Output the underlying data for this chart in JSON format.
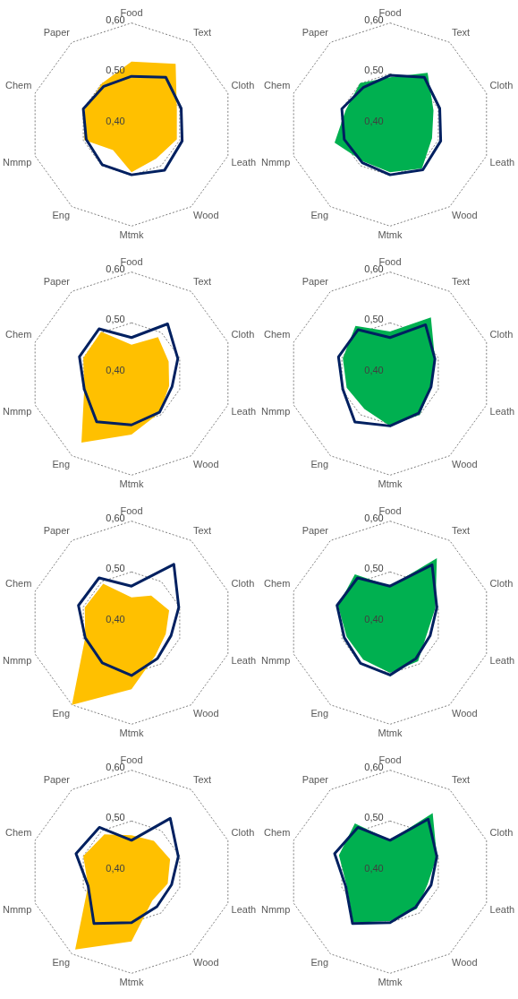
{
  "chart_data": [
    {
      "type": "radar",
      "categories": [
        "Food",
        "Text",
        "Cloth",
        "Leath",
        "Wood",
        "Mtmk",
        "Eng",
        "Nmmp",
        "Chem",
        "Paper"
      ],
      "ylim": [
        0.4,
        0.6
      ],
      "yticks": [
        {
          "value": 0.4,
          "label": "0,40"
        },
        {
          "value": 0.5,
          "label": "0,50"
        },
        {
          "value": 0.6,
          "label": "0,60"
        }
      ],
      "grid": true,
      "legend": false,
      "marker": "none",
      "series": [
        {
          "type": "area",
          "color": "#ffc000",
          "values": [
            0.524,
            0.548,
            0.494,
            0.494,
            0.483,
            0.494,
            0.462,
            0.498,
            0.497,
            0.5
          ]
        },
        {
          "type": "radar",
          "color": "#002060",
          "values": [
            0.495,
            0.515,
            0.503,
            0.505,
            0.511,
            0.499,
            0.498,
            0.494,
            0.5,
            0.493
          ]
        }
      ]
    },
    {
      "type": "radar",
      "categories": [
        "Food",
        "Text",
        "Cloth",
        "Leath",
        "Wood",
        "Mtmk",
        "Eng",
        "Nmmp",
        "Chem",
        "Paper"
      ],
      "ylim": [
        0.4,
        0.6
      ],
      "yticks": [
        {
          "value": 0.4,
          "label": "0,40"
        },
        {
          "value": 0.5,
          "label": "0,50"
        },
        {
          "value": 0.6,
          "label": "0,60"
        }
      ],
      "grid": true,
      "legend": false,
      "marker": "none",
      "series": [
        {
          "type": "area",
          "color": "#00b050",
          "values": [
            0.493,
            0.526,
            0.49,
            0.487,
            0.507,
            0.494,
            0.49,
            0.515,
            0.492,
            0.501
          ]
        },
        {
          "type": "radar",
          "color": "#002060",
          "values": [
            0.497,
            0.515,
            0.503,
            0.505,
            0.51,
            0.499,
            0.493,
            0.495,
            0.5,
            0.49
          ]
        }
      ]
    },
    {
      "type": "radar",
      "categories": [
        "Food",
        "Text",
        "Cloth",
        "Leath",
        "Wood",
        "Mtmk",
        "Eng",
        "Nmmp",
        "Chem",
        "Paper"
      ],
      "ylim": [
        0.4,
        0.6
      ],
      "yticks": [
        {
          "value": 0.4,
          "label": "0,40"
        },
        {
          "value": 0.5,
          "label": "0,50"
        },
        {
          "value": 0.6,
          "label": "0,60"
        }
      ],
      "grid": true,
      "legend": false,
      "marker": "none",
      "series": [
        {
          "type": "area",
          "color": "#ffc000",
          "values": [
            0.457,
            0.489,
            0.477,
            0.478,
            0.495,
            0.52,
            0.568,
            0.498,
            0.5,
            0.502
          ]
        },
        {
          "type": "radar",
          "color": "#002060",
          "values": [
            0.471,
            0.521,
            0.496,
            0.484,
            0.494,
            0.501,
            0.517,
            0.498,
            0.508,
            0.509
          ]
        }
      ]
    },
    {
      "type": "radar",
      "categories": [
        "Food",
        "Text",
        "Cloth",
        "Leath",
        "Wood",
        "Mtmk",
        "Eng",
        "Nmmp",
        "Chem",
        "Paper"
      ],
      "ylim": [
        0.4,
        0.6
      ],
      "yticks": [
        {
          "value": 0.4,
          "label": "0,40"
        },
        {
          "value": 0.5,
          "label": "0,50"
        },
        {
          "value": 0.6,
          "label": "0,60"
        }
      ],
      "grid": true,
      "legend": false,
      "marker": "none",
      "series": [
        {
          "type": "area",
          "color": "#00b050",
          "values": [
            0.483,
            0.537,
            0.493,
            0.485,
            0.5,
            0.503,
            0.486,
            0.49,
            0.498,
            0.516
          ]
        },
        {
          "type": "radar",
          "color": "#002060",
          "values": [
            0.471,
            0.519,
            0.493,
            0.485,
            0.496,
            0.503,
            0.518,
            0.498,
            0.507,
            0.507
          ]
        }
      ]
    },
    {
      "type": "radar",
      "categories": [
        "Food",
        "Text",
        "Cloth",
        "Leath",
        "Wood",
        "Mtmk",
        "Eng",
        "Nmmp",
        "Chem",
        "Paper"
      ],
      "ylim": [
        0.4,
        0.6
      ],
      "yticks": [
        {
          "value": 0.4,
          "label": "0,40"
        },
        {
          "value": 0.5,
          "label": "0,50"
        },
        {
          "value": 0.6,
          "label": "0,60"
        }
      ],
      "grid": true,
      "legend": false,
      "marker": "none",
      "series": [
        {
          "type": "area",
          "color": "#ffc000",
          "values": [
            0.45,
            0.466,
            0.478,
            0.471,
            0.48,
            0.531,
            0.6,
            0.496,
            0.497,
            0.495
          ]
        },
        {
          "type": "radar",
          "color": "#002060",
          "values": [
            0.472,
            0.542,
            0.498,
            0.482,
            0.487,
            0.504,
            0.498,
            0.496,
            0.51,
            0.509
          ]
        }
      ]
    },
    {
      "type": "radar",
      "categories": [
        "Food",
        "Text",
        "Cloth",
        "Leath",
        "Wood",
        "Mtmk",
        "Eng",
        "Nmmp",
        "Chem",
        "Paper"
      ],
      "ylim": [
        0.4,
        0.6
      ],
      "yticks": [
        {
          "value": 0.4,
          "label": "0,40"
        },
        {
          "value": 0.5,
          "label": "0,50"
        },
        {
          "value": 0.6,
          "label": "0,60"
        }
      ],
      "grid": true,
      "legend": false,
      "marker": "none",
      "series": [
        {
          "type": "area",
          "color": "#00b050",
          "values": [
            0.472,
            0.557,
            0.494,
            0.476,
            0.494,
            0.499,
            0.49,
            0.49,
            0.508,
            0.518
          ]
        },
        {
          "type": "radar",
          "color": "#002060",
          "values": [
            0.472,
            0.541,
            0.497,
            0.483,
            0.487,
            0.503,
            0.499,
            0.495,
            0.51,
            0.509
          ]
        }
      ]
    },
    {
      "type": "radar",
      "categories": [
        "Food",
        "Text",
        "Cloth",
        "Leath",
        "Wood",
        "Mtmk",
        "Eng",
        "Nmmp",
        "Chem",
        "Paper"
      ],
      "ylim": [
        0.4,
        0.6
      ],
      "yticks": [
        {
          "value": 0.4,
          "label": "0,40"
        },
        {
          "value": 0.5,
          "label": "0,50"
        },
        {
          "value": 0.6,
          "label": "0,60"
        }
      ],
      "grid": true,
      "legend": false,
      "marker": "none",
      "series": [
        {
          "type": "area",
          "color": "#ffc000",
          "values": [
            0.472,
            0.475,
            0.48,
            0.475,
            0.47,
            0.537,
            0.589,
            0.49,
            0.5,
            0.491
          ]
        },
        {
          "type": "radar",
          "color": "#002060",
          "values": [
            0.462,
            0.53,
            0.497,
            0.483,
            0.485,
            0.5,
            0.526,
            0.49,
            0.515,
            0.508
          ]
        }
      ]
    },
    {
      "type": "radar",
      "categories": [
        "Food",
        "Text",
        "Cloth",
        "Leath",
        "Wood",
        "Mtmk",
        "Eng",
        "Nmmp",
        "Chem",
        "Paper"
      ],
      "ylim": [
        0.4,
        0.6
      ],
      "yticks": [
        {
          "value": 0.4,
          "label": "0,40"
        },
        {
          "value": 0.5,
          "label": "0,50"
        },
        {
          "value": 0.6,
          "label": "0,60"
        }
      ],
      "grid": true,
      "legend": false,
      "marker": "none",
      "series": [
        {
          "type": "area",
          "color": "#00b050",
          "values": [
            0.462,
            0.543,
            0.497,
            0.478,
            0.49,
            0.497,
            0.524,
            0.49,
            0.506,
            0.518
          ]
        },
        {
          "type": "radar",
          "color": "#002060",
          "values": [
            0.462,
            0.528,
            0.497,
            0.485,
            0.486,
            0.5,
            0.526,
            0.492,
            0.515,
            0.508
          ]
        }
      ]
    }
  ]
}
